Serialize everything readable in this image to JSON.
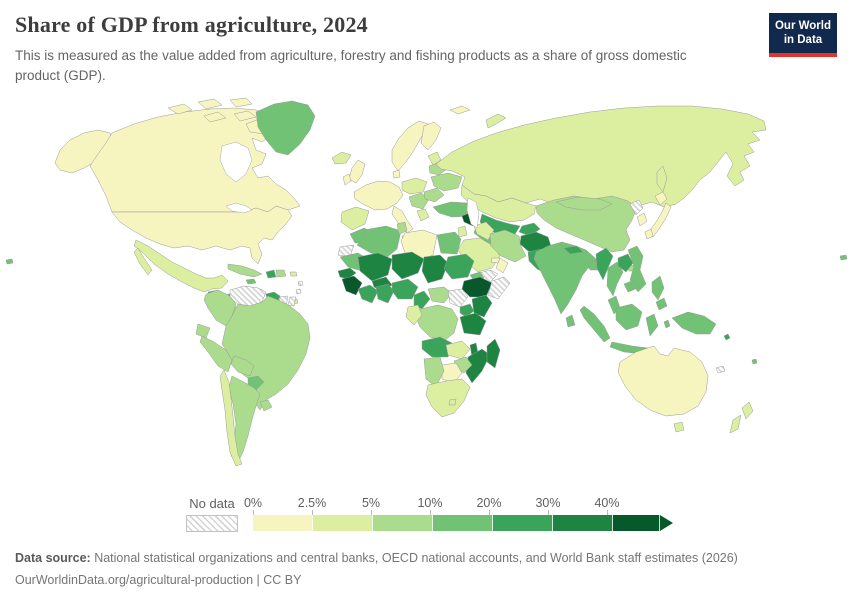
{
  "header": {
    "title": "Share of GDP from agriculture, 2024",
    "subtitle": "This is measured as the value added from agriculture, forestry and fishing products as a share of gross domestic product (GDP).",
    "logo_line1": "Our World",
    "logo_line2": "in Data",
    "logo_bg": "#12294e",
    "logo_accent": "#e0342c"
  },
  "footer": {
    "source_label": "Data source:",
    "source_text": " National statistical organizations and central banks, OECD national accounts, and World Bank staff estimates (2026)",
    "link_text": "OurWorldinData.org/agricultural-production | CC BY"
  },
  "chart_data": {
    "type": "choropleth",
    "title": "Share of GDP from agriculture, 2024",
    "unit": "% of GDP",
    "legend": {
      "no_data_label": "No data",
      "no_data_pattern": "diagonal-hatch",
      "position": "bottom",
      "tick_labels": [
        "0%",
        "2.5%",
        "5%",
        "10%",
        "20%",
        "30%",
        "40%"
      ],
      "bins": [
        {
          "id": "b1",
          "range": "0-2.5%",
          "color": "#f7f5bf"
        },
        {
          "id": "b2",
          "range": "2.5-5%",
          "color": "#dcee9f"
        },
        {
          "id": "b3",
          "range": "5-10%",
          "color": "#abdb8d"
        },
        {
          "id": "b4",
          "range": "10-20%",
          "color": "#71c274"
        },
        {
          "id": "b5",
          "range": "20-30%",
          "color": "#39a45a"
        },
        {
          "id": "b6",
          "range": "30-40%",
          "color": "#1d8442"
        },
        {
          "id": "b7",
          "range": "40%+",
          "color": "#07582b"
        }
      ]
    },
    "regions": {
      "alaska": "b1",
      "canada": "b1",
      "arctic-island-1": "b1",
      "arctic-island-2": "b1",
      "arctic-island-3": "b1",
      "arctic-island-4": "b1",
      "arctic-island-5": "b1",
      "baffin-island": "b1",
      "greenland": "b4",
      "iceland": "b2",
      "svalbard": "b1",
      "united-states": "b1",
      "mexico": "b2",
      "guatemala": "b5",
      "honduras-nicaragua": "b5",
      "costa-rica-panama": "b3",
      "cuba": "b3",
      "jamaica": "b4",
      "haiti": "b5",
      "dominican-republic": "b3",
      "puerto-rico": "b2",
      "lesser-antilles-1": "nodata",
      "lesser-antilles-2": "nodata",
      "trinidad": "b2",
      "venezuela": "nodata",
      "guyana": "b5",
      "suriname": "nodata",
      "french-guiana": "nodata",
      "colombia": "b3",
      "ecuador": "b3",
      "peru": "b3",
      "brazil": "b3",
      "bolivia": "b3",
      "paraguay": "b4",
      "uruguay": "b3",
      "argentina": "b3",
      "chile": "b2",
      "united-kingdom": "b1",
      "ireland": "b1",
      "norway-sweden": "b1",
      "finland": "b1",
      "denmark": "b1",
      "baltic-states": "b2",
      "western-europe": "b1",
      "iberia": "b2",
      "italy": "b1",
      "sicily": "b1",
      "central-europe": "b2",
      "balkans": "b3",
      "greece": "b2",
      "romania": "b3",
      "ukraine": "b3",
      "belarus": "b3",
      "turkey": "b4",
      "caucasus": "b4",
      "russia": "b2",
      "novaya-zemlya": "b2",
      "sakhalin": "b2",
      "kazakhstan": "b2",
      "uzbekistan": "b5",
      "turkmenistan": "b4",
      "kyrgyzstan-tajikistan": "b5",
      "syria": "b7",
      "iraq": "b2",
      "jordan-israel": "b2",
      "saudi-arabia": "b2",
      "yemen": "nodata",
      "oman": "b1",
      "uae": "b1",
      "iran": "b3",
      "afghanistan": "b6",
      "pakistan": "b5",
      "india": "b4",
      "nepal": "b5",
      "bangladesh": "b4",
      "sri-lanka": "b4",
      "china": "b3",
      "mongolia": "b3",
      "hainan": "b3",
      "taiwan": "b3",
      "north-korea": "nodata",
      "south-korea": "b1",
      "japan-honshu": "b1",
      "japan-kyushu": "b1",
      "japan-hokkaido": "b1",
      "myanmar": "b5",
      "thailand": "b4",
      "laos": "b5",
      "vietnam": "b4",
      "cambodia": "b4",
      "malaysia": "b4",
      "sumatra": "b4",
      "java": "b4",
      "borneo": "b4",
      "sulawesi": "b4",
      "philippines": "b4",
      "mindanao": "b4",
      "moluccas": "b4",
      "new-guinea": "b4",
      "solomon-islands": "b5",
      "australia": "b1",
      "tasmania": "b2",
      "new-zealand-north": "b2",
      "new-zealand-south": "b2",
      "new-caledonia": "nodata",
      "fiji": "b4",
      "morocco": "b4",
      "western-sahara": "nodata",
      "algeria": "b4",
      "tunisia": "b3",
      "libya": "b1",
      "egypt": "b4",
      "mauritania": "b4",
      "mali": "b6",
      "burkina-faso": "b6",
      "niger": "b6",
      "chad": "b6",
      "sudan": "b5",
      "eritrea": "b4",
      "ethiopia": "b7",
      "somalia": "nodata",
      "senegal": "b6",
      "guinea": "b7",
      "cote-divoire": "b5",
      "ghana": "b5",
      "nigeria": "b5",
      "cameroon": "b5",
      "central-african-republic": "b3",
      "south-sudan": "nodata",
      "uganda": "b5",
      "kenya": "b6",
      "drc": "b3",
      "gabon-congo": "b2",
      "tanzania": "b6",
      "angola": "b5",
      "zambia": "b2",
      "malawi": "b6",
      "mozambique": "b6",
      "zimbabwe": "b3",
      "botswana": "b1",
      "namibia": "b3",
      "south-africa": "b2",
      "lesotho": "b2",
      "madagascar": "b6",
      "pacific-speck-west": "b4",
      "pacific-speck-east": "b4"
    }
  }
}
